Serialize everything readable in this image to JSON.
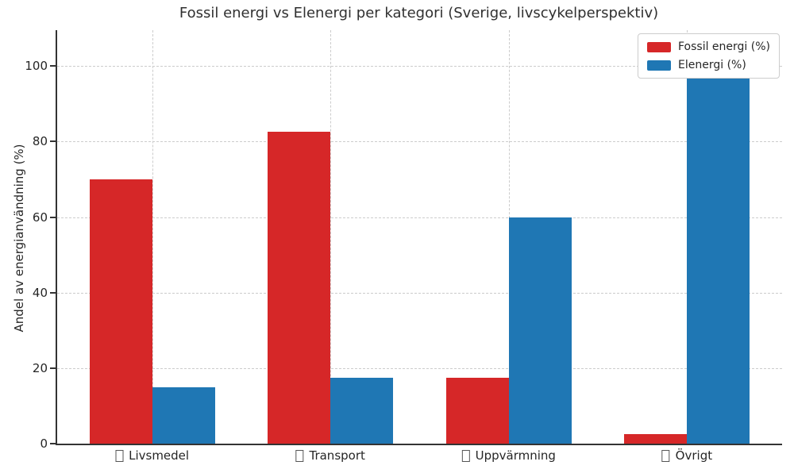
{
  "chart_data": {
    "type": "bar",
    "title": "Fossil energi vs Elenergi per kategori (Sverige, livscykelperspektiv)",
    "xlabel": "",
    "ylabel": "Andel av energianvändning (%)",
    "categories": [
      "Livsmedel",
      "Transport",
      "Uppvärmning",
      "Övrigt"
    ],
    "category_prefix_glyph": "missing-emoji-tofu-box",
    "series": [
      {
        "name": "Fossil energi (%)",
        "color": "#d62728",
        "values": [
          70,
          82.5,
          17.5,
          2.5
        ]
      },
      {
        "name": "Elenergi (%)",
        "color": "#1f77b4",
        "values": [
          15,
          17.5,
          60,
          97.5
        ]
      }
    ],
    "yticks": [
      0,
      20,
      40,
      60,
      80,
      100
    ],
    "ylim": [
      0,
      109.5
    ],
    "grid": "dashed-both-axes",
    "legend_position": "upper right",
    "background": "#ffffff"
  }
}
